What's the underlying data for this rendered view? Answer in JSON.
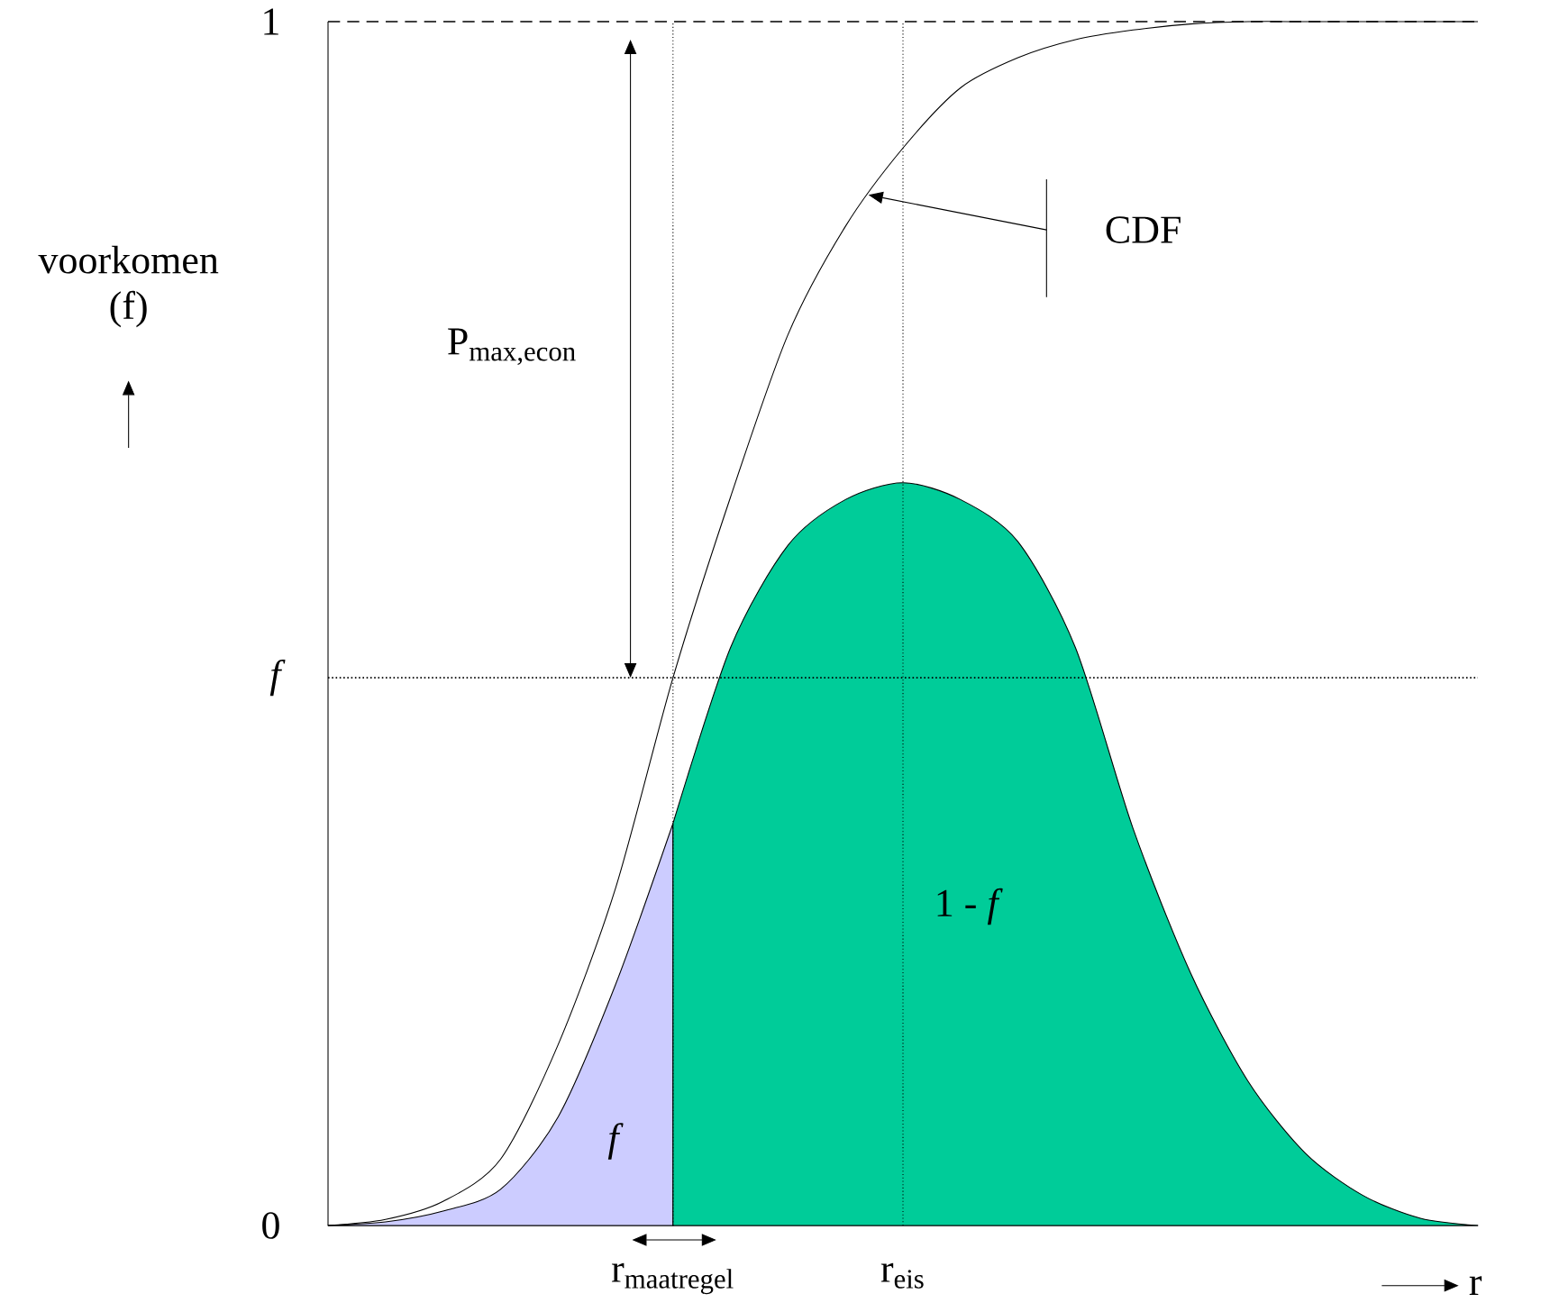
{
  "chart_data": {
    "type": "line",
    "ylabel": "voorkomen (f)",
    "xlabel": "r",
    "categories": [
      null,
      null,
      null,
      null,
      null,
      null,
      "\\text{r}_{\\text{maatregel}}",
      null,
      null,
      null,
      "\\text{r}_{\\text{eis}}",
      null,
      null,
      null,
      null,
      null,
      null,
      null,
      null,
      null,
      null
    ],
    "ylim": [
      0,
      1
    ],
    "yticks": [
      0,
      {
        "value": 0.455,
        "label": "f"
      },
      1
    ],
    "series": [
      {
        "type": "area",
        "color": "#ccccff",
        "values": [
          0,
          0.003,
          0.012,
          0.03,
          0.09,
          0.2,
          0.334,
          null,
          null,
          null,
          null,
          null,
          null,
          null,
          null,
          null,
          null,
          null,
          null,
          null,
          null
        ]
      },
      {
        "type": "area",
        "color": "#00cc99",
        "values": [
          null,
          null,
          null,
          null,
          null,
          null,
          0.334,
          0.48,
          0.565,
          0.603,
          0.617,
          0.603,
          0.568,
          0.48,
          0.33,
          0.21,
          0.12,
          0.06,
          0.025,
          0.006,
          0
        ]
      },
      {
        "color": "#000000",
        "values": [
          0,
          0.005,
          0.02,
          0.055,
          0.15,
          0.28,
          0.455,
          0.605,
          0.74,
          0.83,
          0.895,
          0.945,
          0.97,
          0.985,
          0.993,
          0.998,
          1,
          1,
          1,
          1,
          1
        ]
      }
    ],
    "ref_lines": [
      {
        "axis": "y",
        "value": 0.455,
        "line_style": "dotted"
      },
      {
        "axis": "x",
        "value": "\\text{r}_{\\text{maatregel}}",
        "line_style": "dotted"
      },
      {
        "axis": "x",
        "value": "\\text{r}_{\\text{eis}}",
        "line_style": "dotted"
      },
      {
        "axis": "y",
        "value": 1,
        "line_style": "dashed"
      }
    ],
    "annotations": [
      "CDF",
      "\\text{P}_{\\text{max,econ}}",
      "f",
      "1 - *f*"
    ]
  }
}
